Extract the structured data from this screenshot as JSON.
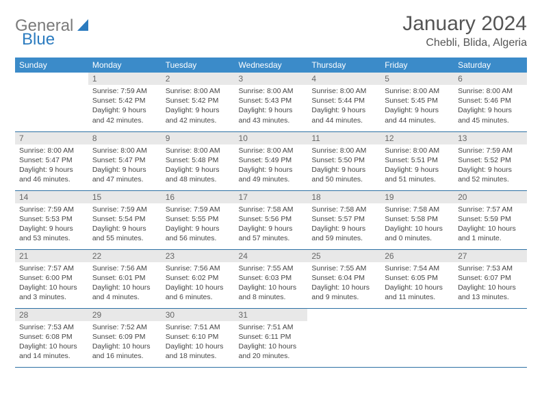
{
  "logo": {
    "part1": "General",
    "part2": "Blue"
  },
  "title": "January 2024",
  "location": "Chebli, Blida, Algeria",
  "weekdays": [
    "Sunday",
    "Monday",
    "Tuesday",
    "Wednesday",
    "Thursday",
    "Friday",
    "Saturday"
  ],
  "colors": {
    "header_bg": "#3b8bc9",
    "header_text": "#ffffff",
    "daynum_bg": "#e8e8e8",
    "border": "#2b6fa3",
    "logo_gray": "#7a7a7a",
    "logo_blue": "#2b7bbf"
  },
  "weeks": [
    [
      {
        "num": "",
        "sunrise": "",
        "sunset": "",
        "daylight": ""
      },
      {
        "num": "1",
        "sunrise": "Sunrise: 7:59 AM",
        "sunset": "Sunset: 5:42 PM",
        "daylight": "Daylight: 9 hours and 42 minutes."
      },
      {
        "num": "2",
        "sunrise": "Sunrise: 8:00 AM",
        "sunset": "Sunset: 5:42 PM",
        "daylight": "Daylight: 9 hours and 42 minutes."
      },
      {
        "num": "3",
        "sunrise": "Sunrise: 8:00 AM",
        "sunset": "Sunset: 5:43 PM",
        "daylight": "Daylight: 9 hours and 43 minutes."
      },
      {
        "num": "4",
        "sunrise": "Sunrise: 8:00 AM",
        "sunset": "Sunset: 5:44 PM",
        "daylight": "Daylight: 9 hours and 44 minutes."
      },
      {
        "num": "5",
        "sunrise": "Sunrise: 8:00 AM",
        "sunset": "Sunset: 5:45 PM",
        "daylight": "Daylight: 9 hours and 44 minutes."
      },
      {
        "num": "6",
        "sunrise": "Sunrise: 8:00 AM",
        "sunset": "Sunset: 5:46 PM",
        "daylight": "Daylight: 9 hours and 45 minutes."
      }
    ],
    [
      {
        "num": "7",
        "sunrise": "Sunrise: 8:00 AM",
        "sunset": "Sunset: 5:47 PM",
        "daylight": "Daylight: 9 hours and 46 minutes."
      },
      {
        "num": "8",
        "sunrise": "Sunrise: 8:00 AM",
        "sunset": "Sunset: 5:47 PM",
        "daylight": "Daylight: 9 hours and 47 minutes."
      },
      {
        "num": "9",
        "sunrise": "Sunrise: 8:00 AM",
        "sunset": "Sunset: 5:48 PM",
        "daylight": "Daylight: 9 hours and 48 minutes."
      },
      {
        "num": "10",
        "sunrise": "Sunrise: 8:00 AM",
        "sunset": "Sunset: 5:49 PM",
        "daylight": "Daylight: 9 hours and 49 minutes."
      },
      {
        "num": "11",
        "sunrise": "Sunrise: 8:00 AM",
        "sunset": "Sunset: 5:50 PM",
        "daylight": "Daylight: 9 hours and 50 minutes."
      },
      {
        "num": "12",
        "sunrise": "Sunrise: 8:00 AM",
        "sunset": "Sunset: 5:51 PM",
        "daylight": "Daylight: 9 hours and 51 minutes."
      },
      {
        "num": "13",
        "sunrise": "Sunrise: 7:59 AM",
        "sunset": "Sunset: 5:52 PM",
        "daylight": "Daylight: 9 hours and 52 minutes."
      }
    ],
    [
      {
        "num": "14",
        "sunrise": "Sunrise: 7:59 AM",
        "sunset": "Sunset: 5:53 PM",
        "daylight": "Daylight: 9 hours and 53 minutes."
      },
      {
        "num": "15",
        "sunrise": "Sunrise: 7:59 AM",
        "sunset": "Sunset: 5:54 PM",
        "daylight": "Daylight: 9 hours and 55 minutes."
      },
      {
        "num": "16",
        "sunrise": "Sunrise: 7:59 AM",
        "sunset": "Sunset: 5:55 PM",
        "daylight": "Daylight: 9 hours and 56 minutes."
      },
      {
        "num": "17",
        "sunrise": "Sunrise: 7:58 AM",
        "sunset": "Sunset: 5:56 PM",
        "daylight": "Daylight: 9 hours and 57 minutes."
      },
      {
        "num": "18",
        "sunrise": "Sunrise: 7:58 AM",
        "sunset": "Sunset: 5:57 PM",
        "daylight": "Daylight: 9 hours and 59 minutes."
      },
      {
        "num": "19",
        "sunrise": "Sunrise: 7:58 AM",
        "sunset": "Sunset: 5:58 PM",
        "daylight": "Daylight: 10 hours and 0 minutes."
      },
      {
        "num": "20",
        "sunrise": "Sunrise: 7:57 AM",
        "sunset": "Sunset: 5:59 PM",
        "daylight": "Daylight: 10 hours and 1 minute."
      }
    ],
    [
      {
        "num": "21",
        "sunrise": "Sunrise: 7:57 AM",
        "sunset": "Sunset: 6:00 PM",
        "daylight": "Daylight: 10 hours and 3 minutes."
      },
      {
        "num": "22",
        "sunrise": "Sunrise: 7:56 AM",
        "sunset": "Sunset: 6:01 PM",
        "daylight": "Daylight: 10 hours and 4 minutes."
      },
      {
        "num": "23",
        "sunrise": "Sunrise: 7:56 AM",
        "sunset": "Sunset: 6:02 PM",
        "daylight": "Daylight: 10 hours and 6 minutes."
      },
      {
        "num": "24",
        "sunrise": "Sunrise: 7:55 AM",
        "sunset": "Sunset: 6:03 PM",
        "daylight": "Daylight: 10 hours and 8 minutes."
      },
      {
        "num": "25",
        "sunrise": "Sunrise: 7:55 AM",
        "sunset": "Sunset: 6:04 PM",
        "daylight": "Daylight: 10 hours and 9 minutes."
      },
      {
        "num": "26",
        "sunrise": "Sunrise: 7:54 AM",
        "sunset": "Sunset: 6:05 PM",
        "daylight": "Daylight: 10 hours and 11 minutes."
      },
      {
        "num": "27",
        "sunrise": "Sunrise: 7:53 AM",
        "sunset": "Sunset: 6:07 PM",
        "daylight": "Daylight: 10 hours and 13 minutes."
      }
    ],
    [
      {
        "num": "28",
        "sunrise": "Sunrise: 7:53 AM",
        "sunset": "Sunset: 6:08 PM",
        "daylight": "Daylight: 10 hours and 14 minutes."
      },
      {
        "num": "29",
        "sunrise": "Sunrise: 7:52 AM",
        "sunset": "Sunset: 6:09 PM",
        "daylight": "Daylight: 10 hours and 16 minutes."
      },
      {
        "num": "30",
        "sunrise": "Sunrise: 7:51 AM",
        "sunset": "Sunset: 6:10 PM",
        "daylight": "Daylight: 10 hours and 18 minutes."
      },
      {
        "num": "31",
        "sunrise": "Sunrise: 7:51 AM",
        "sunset": "Sunset: 6:11 PM",
        "daylight": "Daylight: 10 hours and 20 minutes."
      },
      {
        "num": "",
        "sunrise": "",
        "sunset": "",
        "daylight": ""
      },
      {
        "num": "",
        "sunrise": "",
        "sunset": "",
        "daylight": ""
      },
      {
        "num": "",
        "sunrise": "",
        "sunset": "",
        "daylight": ""
      }
    ]
  ]
}
